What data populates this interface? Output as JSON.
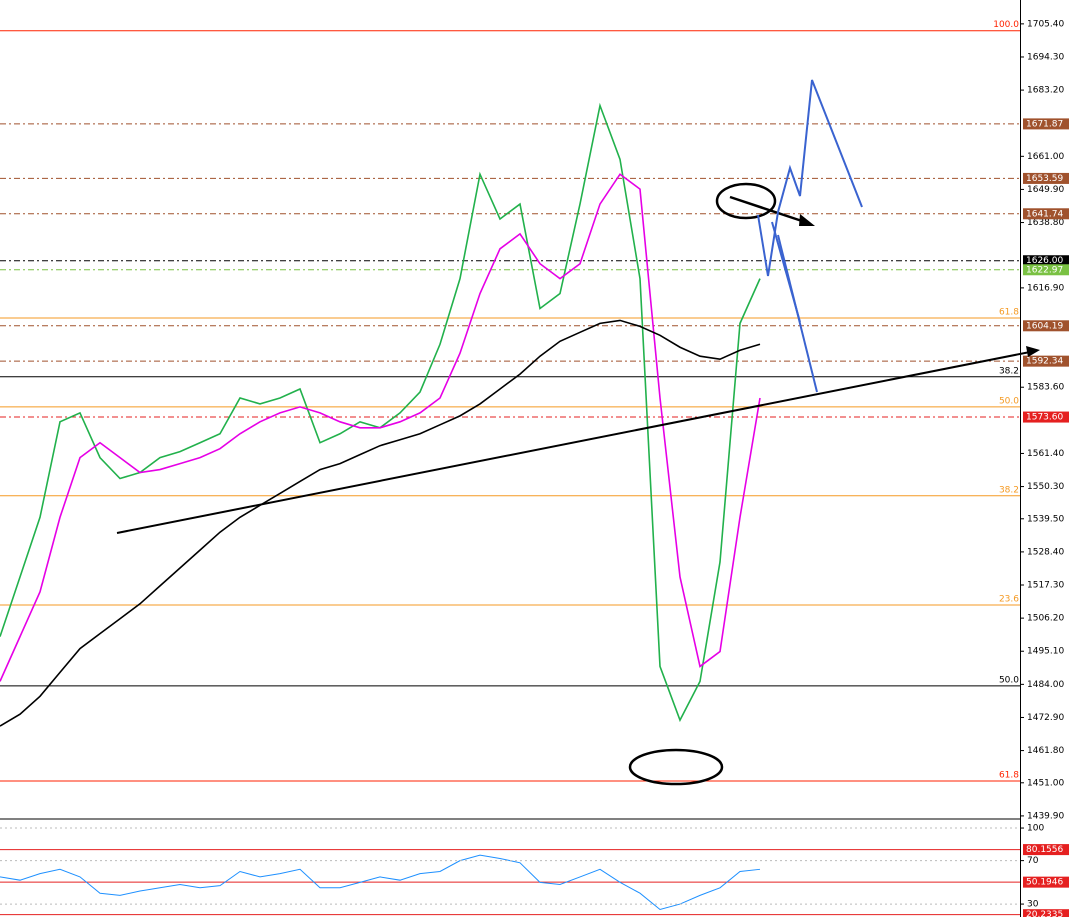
{
  "chart_data": [
    {
      "type": "line",
      "ylim": [
        1439.2,
        1713.4
      ],
      "yticks": [
        {
          "value": 1705.4,
          "label": "1705.40"
        },
        {
          "value": 1694.3,
          "label": "1694.30"
        },
        {
          "value": 1683.2,
          "label": "1683.20"
        },
        {
          "value": 1661,
          "label": "1661.00"
        },
        {
          "value": 1649.9,
          "label": "1649.90"
        },
        {
          "value": 1638.8,
          "label": "1638.80"
        },
        {
          "value": 1616.9,
          "label": "1616.90"
        },
        {
          "value": 1583.6,
          "label": "1583.60"
        },
        {
          "value": 1561.4,
          "label": "1561.40"
        },
        {
          "value": 1550.3,
          "label": "1550.30"
        },
        {
          "value": 1539.5,
          "label": "1539.50"
        },
        {
          "value": 1528.4,
          "label": "1528.40"
        },
        {
          "value": 1517.3,
          "label": "1517.30"
        },
        {
          "value": 1506.2,
          "label": "1506.20"
        },
        {
          "value": 1495.1,
          "label": "1495.10"
        },
        {
          "value": 1484,
          "label": "1484.00"
        },
        {
          "value": 1472.9,
          "label": "1472.90"
        },
        {
          "value": 1461.8,
          "label": "1461.80"
        },
        {
          "value": 1451,
          "label": "1451.00"
        },
        {
          "value": 1439.9,
          "label": "1439.90"
        }
      ],
      "series": [
        {
          "color": "#22b14c",
          "values": [
            1500,
            1520,
            1540,
            1572,
            1575,
            1560,
            1553,
            1555,
            1560,
            1562,
            1565,
            1568,
            1580,
            1578,
            1580,
            1583,
            1565,
            1568,
            1572,
            1570,
            1575,
            1582,
            1598,
            1620,
            1655,
            1640,
            1645,
            1610,
            1615,
            1645,
            1678,
            1660,
            1620,
            1490,
            1472,
            1485,
            1525,
            1605,
            1620
          ]
        },
        {
          "color": "#e600e6",
          "values": [
            1485,
            1500,
            1515,
            1540,
            1560,
            1565,
            1560,
            1555,
            1556,
            1558,
            1560,
            1563,
            1568,
            1572,
            1575,
            1577,
            1575,
            1572,
            1570,
            1570,
            1572,
            1575,
            1580,
            1595,
            1615,
            1630,
            1635,
            1625,
            1620,
            1625,
            1645,
            1655,
            1650,
            1580,
            1520,
            1490,
            1495,
            1540,
            1580
          ]
        },
        {
          "color": "#000000",
          "values": [
            1470,
            1474,
            1480,
            1488,
            1496,
            1501,
            1506,
            1511,
            1517,
            1523,
            1529,
            1535,
            1540,
            1544,
            1548,
            1552,
            1556,
            1558,
            1561,
            1564,
            1566,
            1568,
            1571,
            1574,
            1578,
            1583,
            1588,
            1594,
            1599,
            1602,
            1605,
            1606,
            1604,
            1601,
            1597,
            1594,
            1593,
            1596,
            1598
          ]
        }
      ],
      "levels": [
        {
          "value": 1671.87,
          "color": "#a0522d"
        },
        {
          "value": 1653.59,
          "color": "#a0522d"
        },
        {
          "value": 1641.74,
          "color": "#a0522d"
        },
        {
          "value": 1626,
          "label": "1626.00",
          "color": "#000000"
        },
        {
          "value": 1622.97,
          "color": "#7ac143"
        },
        {
          "value": 1604.19,
          "color": "#a0522d"
        },
        {
          "value": 1592.34,
          "color": "#a0522d"
        },
        {
          "value": 1573.6,
          "label": "1573.60",
          "color": "#e52020"
        }
      ],
      "fib_levels": [
        {
          "label": "100.0",
          "value": 1703.1,
          "color": "#ff2200"
        },
        {
          "label": "61.8",
          "value": 1606.8,
          "color": "#f59a23"
        },
        {
          "label": "38.2",
          "value": 1587.1,
          "color": "#000000"
        },
        {
          "label": "50.0",
          "value": 1577,
          "color": "#f59a23"
        },
        {
          "label": "38.2",
          "value": 1547.2,
          "color": "#f59a23"
        },
        {
          "label": "23.6",
          "value": 1510.6,
          "color": "#f59a23"
        },
        {
          "label": "50.0",
          "value": 1483.5,
          "color": "#000000"
        },
        {
          "label": "61.8",
          "value": 1451.6,
          "color": "#ff2200"
        }
      ]
    },
    {
      "type": "line",
      "ylim": [
        18.1,
        107.4
      ],
      "yticks": [
        100,
        70,
        30
      ],
      "series": [
        {
          "color": "#1e90ff",
          "values": [
            55,
            52,
            58,
            62,
            55,
            40,
            38,
            42,
            45,
            48,
            45,
            47,
            60,
            55,
            58,
            62,
            45,
            45,
            50,
            55,
            52,
            58,
            60,
            70,
            75,
            72,
            68,
            50,
            48,
            55,
            62,
            50,
            40,
            25,
            30,
            38,
            45,
            60,
            62
          ]
        }
      ],
      "levels": [
        {
          "value": 80.1556,
          "color": "#e52020"
        },
        {
          "value": 50.1946,
          "color": "#e52020"
        },
        {
          "value": 20.2335,
          "color": "#e52020"
        }
      ]
    }
  ]
}
